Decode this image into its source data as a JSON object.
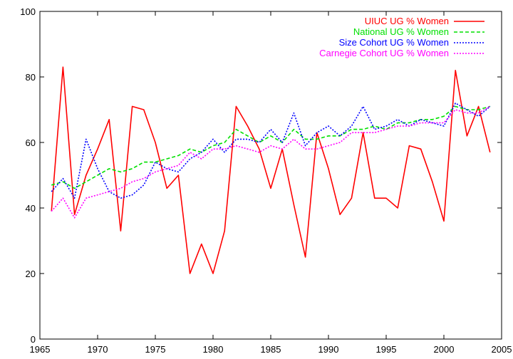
{
  "chart_data": {
    "type": "line",
    "title": "",
    "xlabel": "",
    "ylabel": "",
    "xlim": [
      1965,
      2005
    ],
    "ylim": [
      0,
      100
    ],
    "xticks": [
      1965,
      1970,
      1975,
      1980,
      1985,
      1990,
      1995,
      2000,
      2005
    ],
    "yticks": [
      0,
      20,
      40,
      60,
      80,
      100
    ],
    "grid": false,
    "legend_position": "top-right",
    "x": [
      1966,
      1967,
      1968,
      1969,
      1970,
      1971,
      1972,
      1973,
      1974,
      1975,
      1976,
      1977,
      1978,
      1979,
      1980,
      1981,
      1982,
      1983,
      1984,
      1985,
      1986,
      1987,
      1988,
      1989,
      1990,
      1991,
      1992,
      1993,
      1994,
      1995,
      1996,
      1997,
      1998,
      1999,
      2000,
      2001,
      2002,
      2003,
      2004
    ],
    "series": [
      {
        "name": "UIUC UG % Women",
        "color": "#ff0000",
        "dash": "solid",
        "values": [
          39,
          83,
          38,
          50,
          58,
          67,
          33,
          71,
          70,
          60,
          46,
          50,
          20,
          29,
          20,
          33,
          71,
          65,
          58,
          46,
          58,
          41,
          25,
          63,
          52,
          38,
          43,
          63,
          43,
          43,
          40,
          59,
          58,
          48,
          36,
          82,
          62,
          71,
          57
        ]
      },
      {
        "name": "National UG % Women",
        "color": "#00e000",
        "dash": "dashed",
        "values": [
          47,
          48,
          46,
          48,
          50,
          52,
          51,
          52,
          54,
          54,
          55,
          56,
          58,
          57,
          59,
          60,
          64,
          62,
          60,
          62,
          60,
          64,
          61,
          61,
          62,
          62,
          64,
          64,
          65,
          64,
          66,
          66,
          67,
          67,
          68,
          71,
          70,
          70,
          71
        ]
      },
      {
        "name": "Size Cohort UG % Women",
        "color": "#0000ff",
        "dash": "dotted",
        "values": [
          45,
          49,
          43,
          61,
          52,
          45,
          43,
          44,
          47,
          54,
          52,
          51,
          55,
          57,
          61,
          57,
          61,
          61,
          60,
          64,
          60,
          69,
          59,
          63,
          65,
          62,
          65,
          71,
          64,
          65,
          67,
          65,
          67,
          66,
          65,
          72,
          70,
          68,
          71
        ]
      },
      {
        "name": "Carnegie Cohort UG % Women",
        "color": "#ff00ff",
        "dash": "dotted",
        "values": [
          39,
          43,
          37,
          43,
          44,
          45,
          46,
          48,
          49,
          51,
          52,
          53,
          57,
          55,
          58,
          58,
          59,
          58,
          57,
          59,
          58,
          61,
          58,
          58,
          59,
          60,
          63,
          63,
          63,
          64,
          65,
          65,
          66,
          66,
          66,
          70,
          69,
          69,
          71
        ]
      }
    ]
  }
}
